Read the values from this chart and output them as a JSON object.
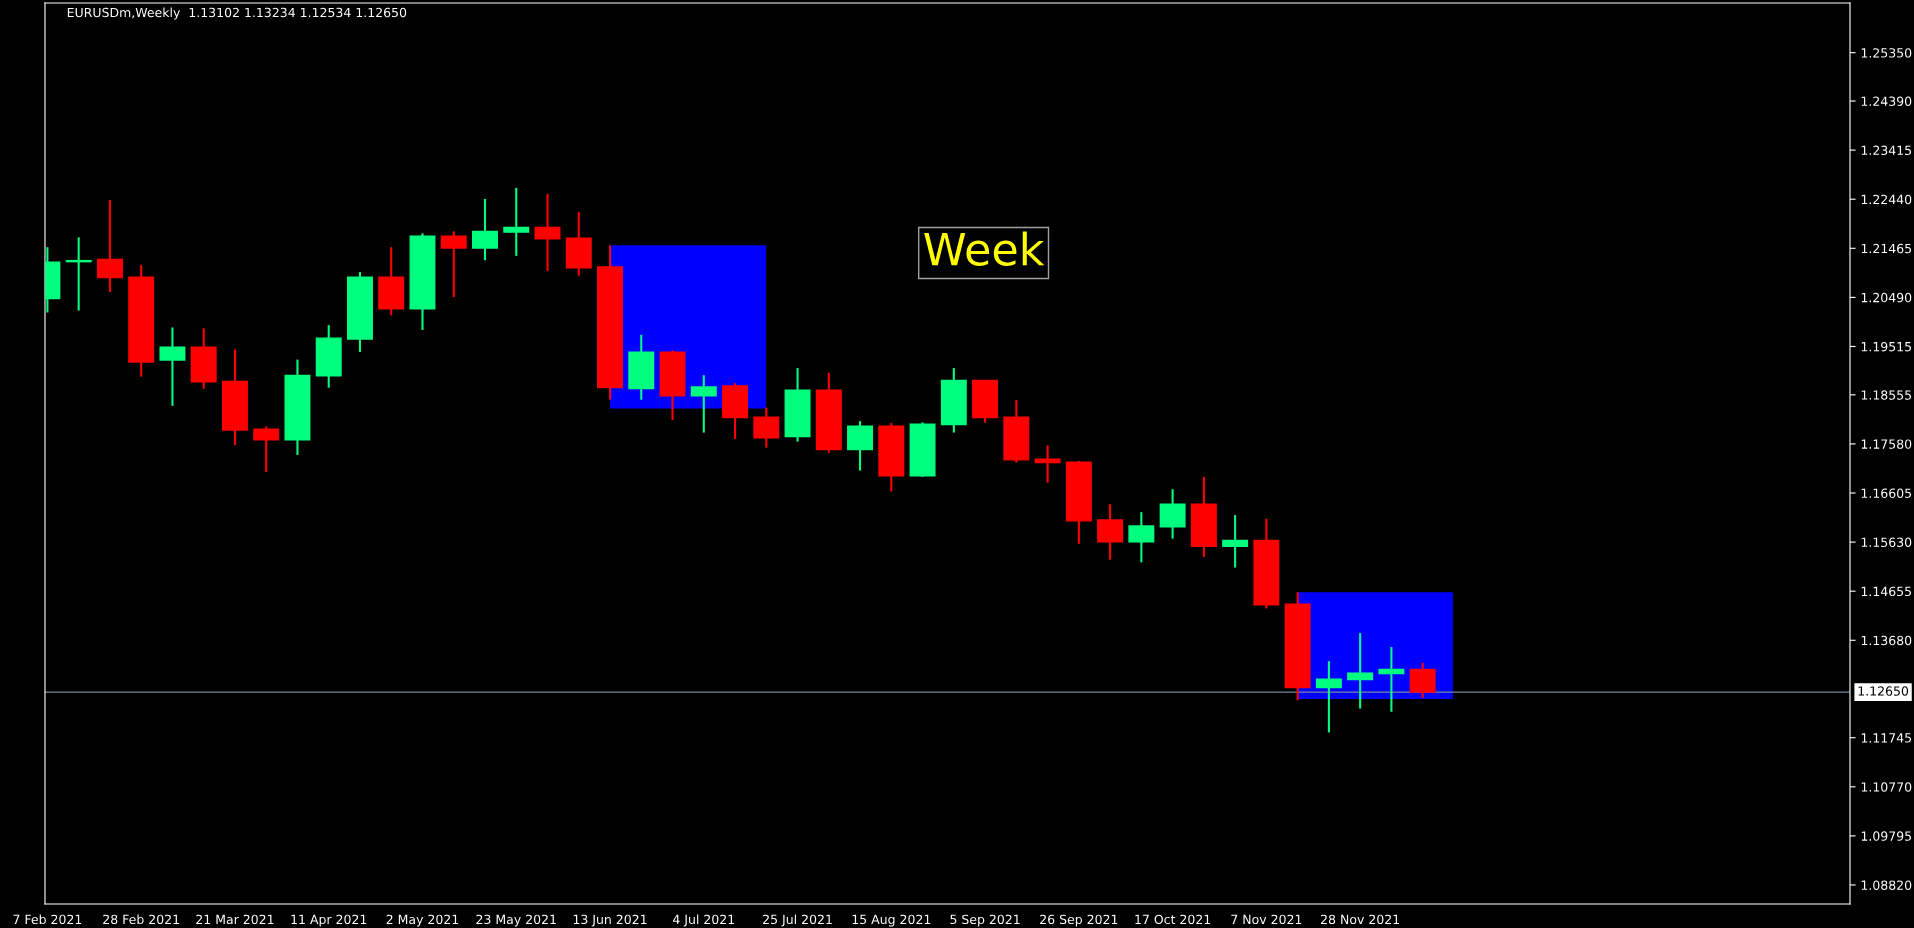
{
  "chart_data": {
    "type": "candlestick",
    "title": "EURUSDm,Weekly  1.13102 1.13234 1.12534 1.12650",
    "x": [
      "2021-02-07",
      "2021-02-14",
      "2021-02-21",
      "2021-02-28",
      "2021-03-07",
      "2021-03-14",
      "2021-03-21",
      "2021-03-28",
      "2021-04-04",
      "2021-04-11",
      "2021-04-18",
      "2021-04-25",
      "2021-05-02",
      "2021-05-09",
      "2021-05-16",
      "2021-05-23",
      "2021-05-30",
      "2021-06-06",
      "2021-06-13",
      "2021-06-20",
      "2021-06-27",
      "2021-07-04",
      "2021-07-11",
      "2021-07-18",
      "2021-07-25",
      "2021-08-01",
      "2021-08-08",
      "2021-08-15",
      "2021-08-22",
      "2021-08-29",
      "2021-09-05",
      "2021-09-12",
      "2021-09-19",
      "2021-09-26",
      "2021-10-03",
      "2021-10-10",
      "2021-10-17",
      "2021-10-24",
      "2021-10-31",
      "2021-11-07",
      "2021-11-14",
      "2021-11-21",
      "2021-11-28",
      "2021-12-05",
      "2021-12-12"
    ],
    "ohlc": [
      [
        1.20466,
        1.21487,
        1.2019,
        1.21189
      ],
      [
        1.212,
        1.21684,
        1.2023,
        1.2122
      ],
      [
        1.21244,
        1.22423,
        1.20599,
        1.20882
      ],
      [
        1.2089,
        1.21134,
        1.18917,
        1.19208
      ],
      [
        1.19247,
        1.19892,
        1.18336,
        1.19499
      ],
      [
        1.19499,
        1.19876,
        1.18674,
        1.18815
      ],
      [
        1.18823,
        1.1946,
        1.17557,
        1.17856
      ],
      [
        1.17872,
        1.17927,
        1.17023,
        1.1766
      ],
      [
        1.1766,
        1.19255,
        1.17361,
        1.18941
      ],
      [
        1.18933,
        1.19939,
        1.18697,
        1.1968
      ],
      [
        1.19664,
        1.20992,
        1.19404,
        1.2089
      ],
      [
        1.2089,
        1.21487,
        1.20135,
        1.20261
      ],
      [
        1.20261,
        1.21762,
        1.19845,
        1.21707
      ],
      [
        1.21707,
        1.21802,
        1.20497,
        1.21472
      ],
      [
        1.21472,
        1.22446,
        1.21228,
        1.21802
      ],
      [
        1.21786,
        1.22666,
        1.21314,
        1.2188
      ],
      [
        1.2188,
        1.22548,
        1.21016,
        1.21652
      ],
      [
        1.21668,
        1.22187,
        1.2092,
        1.21079
      ],
      [
        1.21094,
        1.21527,
        1.18461,
        1.18697
      ],
      [
        1.18677,
        1.19746,
        1.18457,
        1.19401
      ],
      [
        1.19401,
        1.1944,
        1.18056,
        1.18536
      ],
      [
        1.18536,
        1.18945,
        1.17805,
        1.18709
      ],
      [
        1.18732,
        1.18787,
        1.17679,
        1.18104
      ],
      [
        1.18112,
        1.183,
        1.17506,
        1.17703
      ],
      [
        1.17727,
        1.19086,
        1.17624,
        1.18646
      ],
      [
        1.18646,
        1.18992,
        1.17404,
        1.17467
      ],
      [
        1.17467,
        1.18033,
        1.1705,
        1.17931
      ],
      [
        1.17931,
        1.17994,
        1.16634,
        1.16948
      ],
      [
        1.16948,
        1.18009,
        1.16925,
        1.1797
      ],
      [
        1.17962,
        1.19086,
        1.17805,
        1.18842
      ],
      [
        1.18842,
        1.18842,
        1.18001,
        1.18104
      ],
      [
        1.18112,
        1.18449,
        1.17208,
        1.17263
      ],
      [
        1.17278,
        1.17553,
        1.16807,
        1.17208
      ],
      [
        1.17216,
        1.1724,
        1.15596,
        1.16052
      ],
      [
        1.16068,
        1.16382,
        1.15282,
        1.15636
      ],
      [
        1.15636,
        1.16225,
        1.15227,
        1.1595
      ],
      [
        1.15935,
        1.16681,
        1.15698,
        1.16382
      ],
      [
        1.16385,
        1.16923,
        1.15335,
        1.15545
      ],
      [
        1.15545,
        1.16166,
        1.15125,
        1.15664
      ],
      [
        1.15664,
        1.16093,
        1.14313,
        1.14386
      ],
      [
        1.14395,
        1.14633,
        1.12488,
        1.12743
      ],
      [
        1.12743,
        1.13264,
        1.11849,
        1.12908
      ],
      [
        1.12899,
        1.1382,
        1.12324,
        1.13026
      ],
      [
        1.13017,
        1.13546,
        1.1226,
        1.13099
      ],
      [
        1.13102,
        1.13234,
        1.12534,
        1.1265
      ]
    ],
    "colors": [
      "#00ff7f",
      "#00ff7f",
      "#ff0000",
      "#ff0000",
      "#00ff7f",
      "#ff0000",
      "#ff0000",
      "#ff0000",
      "#00ff7f",
      "#00ff7f",
      "#00ff7f",
      "#ff0000",
      "#00ff7f",
      "#ff0000",
      "#00ff7f",
      "#00ff7f",
      "#ff0000",
      "#ff0000",
      "#ff0000",
      "#00ff7f",
      "#ff0000",
      "#00ff7f",
      "#ff0000",
      "#ff0000",
      "#00ff7f",
      "#ff0000",
      "#00ff7f",
      "#ff0000",
      "#00ff7f",
      "#00ff7f",
      "#ff0000",
      "#ff0000",
      "#ff0000",
      "#ff0000",
      "#ff0000",
      "#00ff7f",
      "#00ff7f",
      "#ff0000",
      "#00ff7f",
      "#ff0000",
      "#ff0000",
      "#00ff7f",
      "#00ff7f",
      "#00ff7f",
      "#ff0000"
    ],
    "ylim": [
      1.08442,
      1.26337
    ],
    "yticks": [
      {
        "value": 1.2535,
        "label": "1.25350"
      },
      {
        "value": 1.2439,
        "label": "1.24390"
      },
      {
        "value": 1.23415,
        "label": "1.23415"
      },
      {
        "value": 1.2244,
        "label": "1.22440"
      },
      {
        "value": 1.21465,
        "label": "1.21465"
      },
      {
        "value": 1.2049,
        "label": "1.20490"
      },
      {
        "value": 1.19515,
        "label": "1.19515"
      },
      {
        "value": 1.18555,
        "label": "1.18555"
      },
      {
        "value": 1.1758,
        "label": "1.17580"
      },
      {
        "value": 1.16605,
        "label": "1.16605"
      },
      {
        "value": 1.1563,
        "label": "1.15630"
      },
      {
        "value": 1.14655,
        "label": "1.14655"
      },
      {
        "value": 1.1368,
        "label": "1.13680"
      },
      {
        "value": 1.11745,
        "label": "1.11745"
      },
      {
        "value": 1.1077,
        "label": "1.10770"
      },
      {
        "value": 1.09795,
        "label": "1.09795"
      },
      {
        "value": 1.0882,
        "label": "1.08820"
      }
    ],
    "xlim": [
      "2021-02-06T11:00",
      "2022-03-17T17:00"
    ],
    "xticks": [
      {
        "value": "2021-02-07",
        "label": "7 Feb 2021"
      },
      {
        "value": "2021-02-28",
        "label": "28 Feb 2021"
      },
      {
        "value": "2021-03-21",
        "label": "21 Mar 2021"
      },
      {
        "value": "2021-04-11",
        "label": "11 Apr 2021"
      },
      {
        "value": "2021-05-02",
        "label": "2 May 2021"
      },
      {
        "value": "2021-05-23",
        "label": "23 May 2021"
      },
      {
        "value": "2021-06-13",
        "label": "13 Jun 2021"
      },
      {
        "value": "2021-07-04",
        "label": "4 Jul 2021"
      },
      {
        "value": "2021-07-25",
        "label": "25 Jul 2021"
      },
      {
        "value": "2021-08-15",
        "label": "15 Aug 2021"
      },
      {
        "value": "2021-09-05",
        "label": "5 Sep 2021"
      },
      {
        "value": "2021-09-26",
        "label": "26 Sep 2021"
      },
      {
        "value": "2021-10-17",
        "label": "17 Oct 2021"
      },
      {
        "value": "2021-11-07",
        "label": "7 Nov 2021"
      },
      {
        "value": "2021-11-28",
        "label": "28 Nov 2021"
      }
    ],
    "ref_lines": [
      {
        "axis": "y",
        "value": 1.1265,
        "label": "1.12650",
        "color": "#778899"
      }
    ],
    "annotations": [
      "Week"
    ],
    "grid": false
  }
}
